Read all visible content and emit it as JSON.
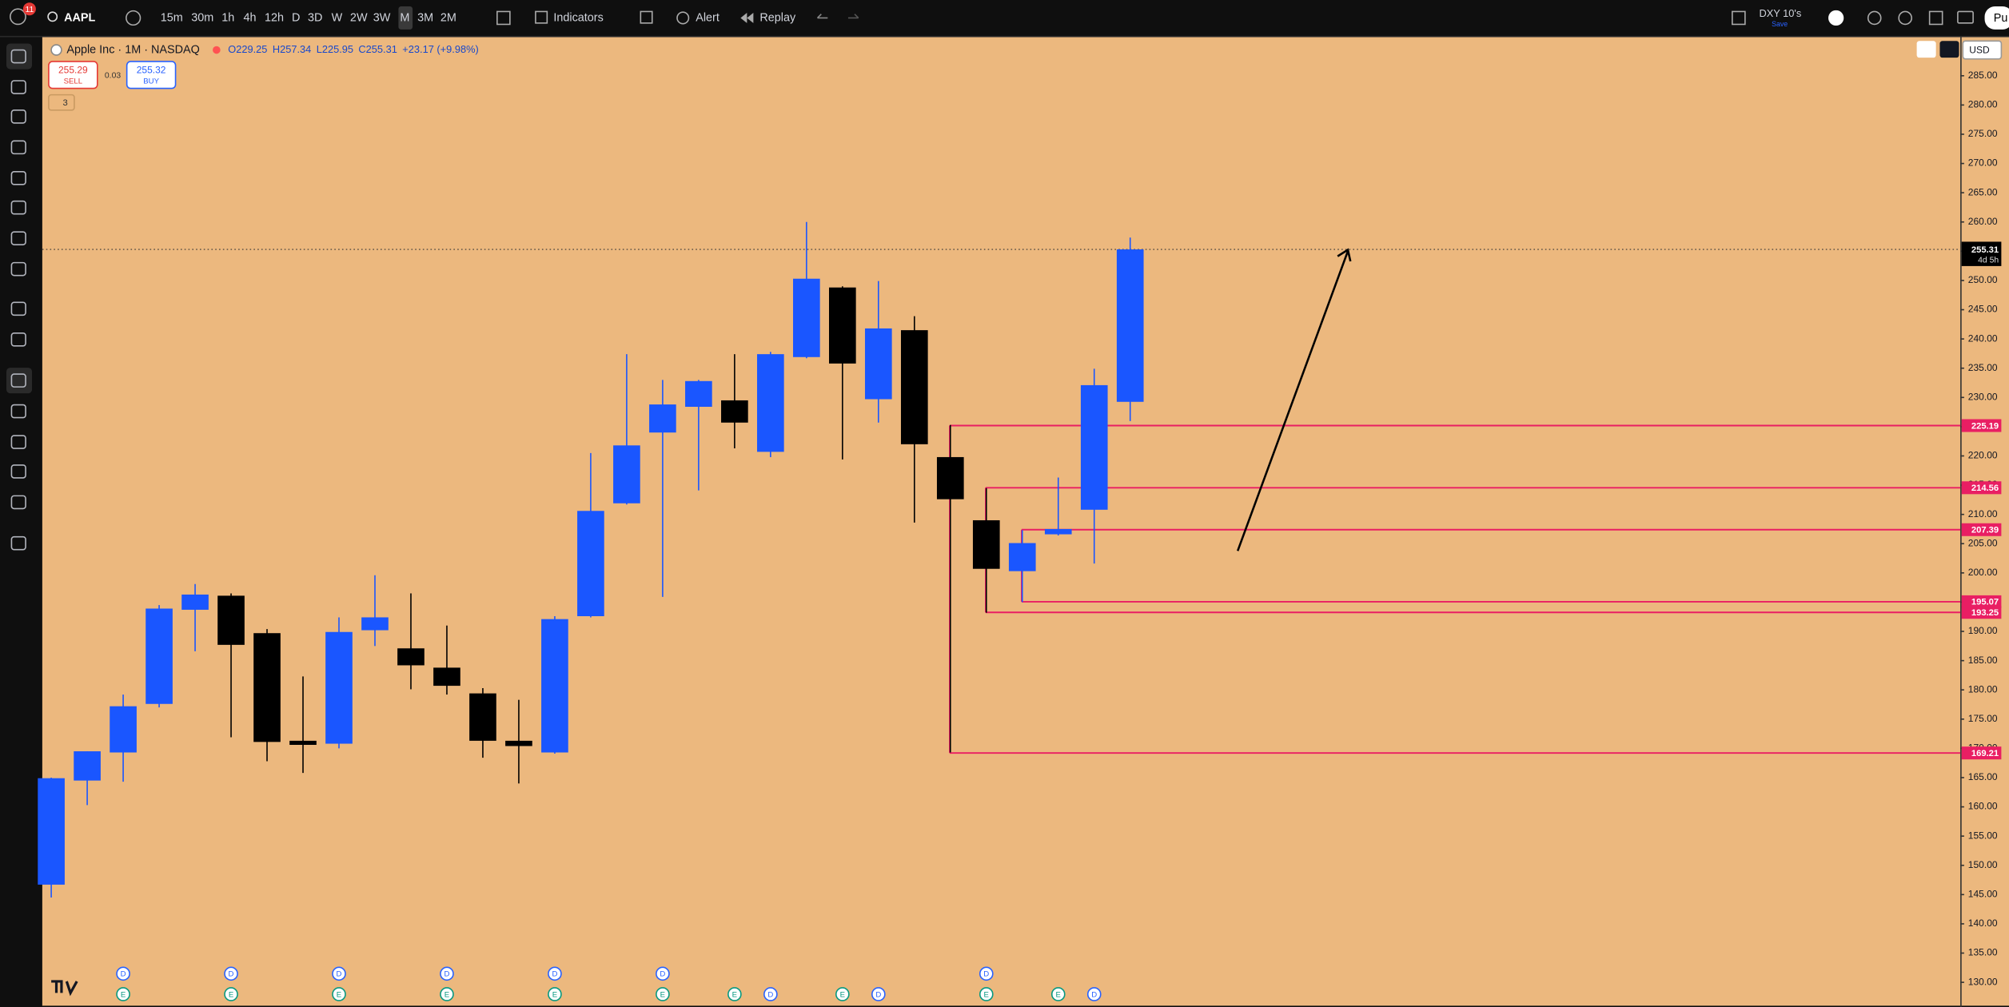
{
  "toolbar": {
    "badge": "11",
    "symbol": "AAPL",
    "intervals": [
      "15m",
      "30m",
      "1h",
      "4h",
      "12h",
      "D",
      "3D",
      "W",
      "2W",
      "3W",
      "M",
      "3M",
      "2M"
    ],
    "indicators": "Indicators",
    "alert": "Alert",
    "replay": "Replay",
    "compare": "DXY 10's",
    "save": "Save",
    "publish": "Pu"
  },
  "header": {
    "title": "Apple Inc · 1M · NASDAQ",
    "ohlc": [
      "O229.25",
      "H257.34",
      "L225.95",
      "C255.31",
      "+23.17 (+9.98%)"
    ],
    "sell_price": "255.29",
    "sell": "SELL",
    "spread": "0.03",
    "buy_price": "255.32",
    "buy": "BUY",
    "indicators_count": "3"
  },
  "chart_data": {
    "type": "candlestick",
    "open": [
      146.7,
      164.5,
      169.3,
      177.6,
      193.7,
      196.1,
      189.7,
      171.3,
      170.8,
      190.2,
      187.1,
      183.8,
      179.4,
      171.3,
      169.3,
      192.6,
      211.9,
      224.0,
      228.4,
      229.5,
      220.7,
      236.9,
      248.8,
      229.7,
      241.5,
      219.8,
      209.0,
      200.3,
      206.6,
      210.8,
      229.25
    ],
    "high": [
      165.0,
      169.5,
      179.2,
      194.5,
      198.1,
      196.5,
      190.4,
      182.3,
      192.4,
      199.6,
      196.5,
      191.0,
      180.3,
      178.3,
      192.6,
      220.5,
      237.4,
      233.0,
      233.0,
      237.4,
      237.8,
      260.0,
      249.0,
      249.9,
      243.9,
      225.3,
      214.5,
      207.3,
      216.3,
      234.9,
      257.34
    ],
    "low": [
      144.5,
      160.3,
      164.3,
      177.0,
      186.6,
      171.9,
      167.8,
      165.8,
      170.0,
      187.5,
      180.1,
      179.2,
      168.4,
      164.0,
      169.1,
      192.4,
      211.7,
      195.9,
      214.1,
      221.3,
      219.8,
      236.7,
      219.4,
      225.7,
      208.6,
      169.3,
      193.2,
      195.0,
      206.4,
      201.6,
      225.95
    ],
    "close": [
      164.9,
      169.5,
      177.2,
      193.9,
      196.3,
      187.7,
      171.1,
      170.6,
      189.9,
      192.4,
      184.2,
      180.7,
      171.3,
      170.4,
      192.1,
      210.6,
      221.8,
      228.8,
      232.8,
      225.7,
      237.4,
      250.3,
      235.8,
      241.8,
      222.0,
      212.6,
      200.7,
      205.1,
      207.5,
      232.1,
      255.31
    ],
    "up_color": "#1a56ff",
    "down_color": "#000000",
    "ylim": [
      126,
      291.6
    ],
    "yticks": [
      {
        "value": 130,
        "label": "130.00"
      },
      {
        "value": 135,
        "label": "135.00"
      },
      {
        "value": 140,
        "label": "140.00"
      },
      {
        "value": 145,
        "label": "145.00"
      },
      {
        "value": 150,
        "label": "150.00"
      },
      {
        "value": 155,
        "label": "155.00"
      },
      {
        "value": 160,
        "label": "160.00"
      },
      {
        "value": 165,
        "label": "165.00"
      },
      {
        "value": 170,
        "label": "170.00"
      },
      {
        "value": 175,
        "label": "175.00"
      },
      {
        "value": 180,
        "label": "180.00"
      },
      {
        "value": 185,
        "label": "185.00"
      },
      {
        "value": 190,
        "label": "190.00"
      },
      {
        "value": 195,
        "label": "195.00"
      },
      {
        "value": 200,
        "label": "200.00"
      },
      {
        "value": 205,
        "label": "205.00"
      },
      {
        "value": 210,
        "label": "210.00"
      },
      {
        "value": 215,
        "label": "215.00"
      },
      {
        "value": 220,
        "label": "220.00"
      },
      {
        "value": 225,
        "label": "225.00"
      },
      {
        "value": 230,
        "label": "230.00"
      },
      {
        "value": 235,
        "label": "235.00"
      },
      {
        "value": 240,
        "label": "240.00"
      },
      {
        "value": 245,
        "label": "245.00"
      },
      {
        "value": 250,
        "label": "250.00"
      },
      {
        "value": 255,
        "label": "255.00"
      },
      {
        "value": 260,
        "label": "260.00"
      },
      {
        "value": 265,
        "label": "265.00"
      },
      {
        "value": 270,
        "label": "270.00"
      },
      {
        "value": 275,
        "label": "275.00"
      },
      {
        "value": 280,
        "label": "280.00"
      },
      {
        "value": 285,
        "label": "285.00"
      }
    ],
    "currency": "USD",
    "last_price": 255.31,
    "countdown": "4d 5h",
    "zones": [
      {
        "high": 225.19,
        "low": 169.21
      },
      {
        "high": 214.56,
        "low": 193.25
      },
      {
        "high": 207.39,
        "low": 195.07
      }
    ],
    "zone_color": "#e91e63",
    "events": {
      "dividend": "D",
      "earnings": "E"
    }
  }
}
